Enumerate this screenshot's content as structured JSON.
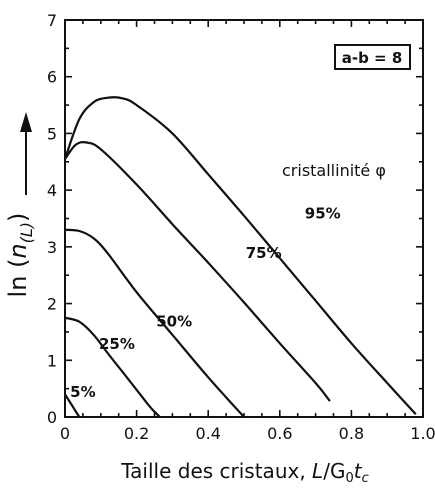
{
  "chart_data": {
    "type": "line",
    "xlabel": "Taille des cristaux, L/G₀tᴄ",
    "xlabel_parts": {
      "prefix": "Taille des cristaux, ",
      "L": "L",
      "slash": "/G",
      "sub0": "0",
      "t": "t",
      "subc": "c"
    },
    "ylabel": "ln (n(L))",
    "ylabel_parts": {
      "prefix": "ln (",
      "n": "n",
      "sub": "(L)",
      "suffix": ")"
    },
    "xlim": [
      0,
      1.0
    ],
    "ylim": [
      0,
      7
    ],
    "xticks": [
      "0",
      "0.2",
      "0.4",
      "0.6",
      "0.8",
      "1.0"
    ],
    "yticks": [
      "0",
      "1",
      "2",
      "3",
      "4",
      "5",
      "6",
      "7"
    ],
    "parameter_box": "a-b = 8",
    "annotation": "cristallinité φ",
    "grid": false,
    "series": [
      {
        "name": "5%",
        "x": [
          0,
          0.02,
          0.04
        ],
        "y": [
          0.4,
          0.2,
          0.0
        ]
      },
      {
        "name": "25%",
        "x": [
          0,
          0.04,
          0.08,
          0.12,
          0.16,
          0.2,
          0.24,
          0.265
        ],
        "y": [
          1.75,
          1.68,
          1.45,
          1.12,
          0.8,
          0.48,
          0.16,
          0.0
        ]
      },
      {
        "name": "50%",
        "x": [
          0,
          0.04,
          0.08,
          0.12,
          0.2,
          0.3,
          0.4,
          0.5
        ],
        "y": [
          3.3,
          3.28,
          3.15,
          2.88,
          2.2,
          1.45,
          0.7,
          0.0
        ]
      },
      {
        "name": "75%",
        "x": [
          0,
          0.03,
          0.06,
          0.1,
          0.2,
          0.3,
          0.4,
          0.5,
          0.6,
          0.7,
          0.74
        ],
        "y": [
          4.55,
          4.8,
          4.84,
          4.72,
          4.1,
          3.4,
          2.72,
          2.02,
          1.3,
          0.6,
          0.28
        ]
      },
      {
        "name": "95%",
        "x": [
          0,
          0.04,
          0.08,
          0.12,
          0.16,
          0.2,
          0.3,
          0.4,
          0.5,
          0.6,
          0.7,
          0.8,
          0.9,
          0.98
        ],
        "y": [
          4.55,
          5.25,
          5.55,
          5.63,
          5.62,
          5.5,
          5.0,
          4.28,
          3.55,
          2.8,
          2.05,
          1.3,
          0.6,
          0.05
        ]
      }
    ]
  }
}
